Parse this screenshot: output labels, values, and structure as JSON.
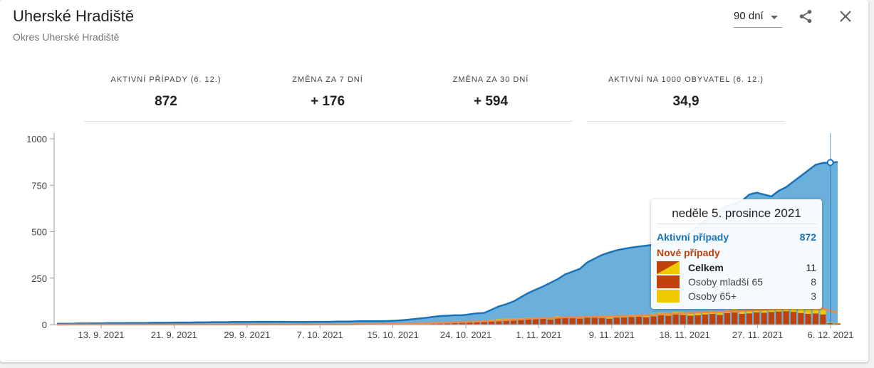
{
  "header": {
    "title": "Uherské Hradiště",
    "subtitle": "Okres Uherské Hradiště",
    "period_value": "90 dní",
    "icons": {
      "share": "share-icon",
      "close": "close-icon",
      "dropdown": "chevron-down-icon"
    }
  },
  "stats": [
    {
      "label": "AKTIVNÍ PŘÍPADY (6. 12.)",
      "value": "872"
    },
    {
      "label": "ZMĚNA ZA 7 DNÍ",
      "value": "+ 176"
    },
    {
      "label": "ZMĚNA ZA 30 DNÍ",
      "value": "+ 594"
    },
    {
      "label": "AKTIVNÍ NA 1000 OBYVATEL (6. 12.)",
      "value": "34,9"
    }
  ],
  "tooltip": {
    "date": "neděle 5. prosince 2021",
    "active_label": "Aktivní případy",
    "active_value": "872",
    "new_label": "Nové případy",
    "rows": [
      {
        "label": "Celkem",
        "value": "11"
      },
      {
        "label": "Osoby mladší 65",
        "value": "8"
      },
      {
        "label": "Osoby 65+",
        "value": "3"
      }
    ]
  },
  "colors": {
    "active_line": "#1a73b8",
    "active_fill": "#6ab0da",
    "new_under65": "#c0410a",
    "new_65plus": "#f0c800",
    "trend": "#f08a4b",
    "active_text": "#1a73b8",
    "new_text": "#c0410a"
  },
  "chart_data": {
    "type": "area",
    "x_tick_labels": [
      "13. 9. 2021",
      "21. 9. 2021",
      "29. 9. 2021",
      "7. 10. 2021",
      "15. 10. 2021",
      "24. 10. 2021",
      "1. 11. 2021",
      "9. 11. 2021",
      "18. 11. 2021",
      "27. 11. 2021",
      "6. 12. 2021"
    ],
    "y_ticks": [
      0,
      250,
      500,
      750,
      1000
    ],
    "ylim": [
      0,
      1000
    ],
    "series": [
      {
        "name": "Aktivní případy",
        "type": "area",
        "values": [
          5,
          5,
          5,
          6,
          6,
          7,
          7,
          8,
          8,
          8,
          9,
          9,
          9,
          10,
          10,
          10,
          11,
          11,
          11,
          12,
          12,
          13,
          13,
          13,
          14,
          14,
          14,
          15,
          15,
          15,
          15,
          15,
          14,
          14,
          14,
          15,
          15,
          15,
          16,
          16,
          17,
          18,
          18,
          18,
          18,
          19,
          21,
          24,
          28,
          32,
          36,
          41,
          46,
          48,
          50,
          50,
          55,
          60,
          63,
          80,
          98,
          110,
          125,
          148,
          170,
          188,
          205,
          225,
          245,
          270,
          285,
          300,
          335,
          355,
          375,
          388,
          400,
          408,
          415,
          420,
          425,
          430,
          440,
          460,
          470,
          485,
          500,
          530,
          560,
          590,
          620,
          640,
          650,
          665,
          700,
          710,
          700,
          690,
          720,
          740,
          770,
          800,
          830,
          860,
          870,
          872,
          875
        ]
      },
      {
        "name": "Osoby mladší 65",
        "type": "bar",
        "values": [
          0,
          0,
          1,
          0,
          1,
          0,
          0,
          1,
          0,
          1,
          0,
          1,
          0,
          0,
          1,
          0,
          1,
          0,
          1,
          1,
          0,
          1,
          0,
          1,
          1,
          0,
          1,
          1,
          0,
          1,
          1,
          0,
          1,
          1,
          0,
          1,
          2,
          1,
          1,
          2,
          2,
          3,
          2,
          3,
          3,
          4,
          5,
          6,
          6,
          7,
          8,
          10,
          12,
          12,
          14,
          13,
          17,
          17,
          18,
          22,
          25,
          28,
          27,
          30,
          31,
          32,
          33,
          28,
          38,
          35,
          34,
          33,
          38,
          37,
          36,
          32,
          38,
          39,
          41,
          42,
          40,
          45,
          50,
          48,
          55,
          52,
          48,
          50,
          55,
          58,
          52,
          62,
          65,
          58,
          60,
          66,
          64,
          68,
          70,
          72,
          68,
          62,
          58,
          60,
          55,
          8,
          6
        ]
      },
      {
        "name": "Osoby 65+",
        "type": "bar",
        "values": [
          0,
          0,
          0,
          0,
          0,
          0,
          0,
          0,
          0,
          0,
          0,
          0,
          0,
          0,
          0,
          0,
          0,
          0,
          0,
          0,
          0,
          0,
          0,
          0,
          0,
          0,
          0,
          0,
          0,
          0,
          0,
          0,
          0,
          0,
          0,
          0,
          0,
          0,
          0,
          0,
          0,
          1,
          1,
          1,
          1,
          1,
          1,
          1,
          2,
          2,
          2,
          2,
          2,
          3,
          3,
          3,
          3,
          3,
          4,
          4,
          5,
          4,
          5,
          5,
          6,
          6,
          6,
          6,
          7,
          7,
          7,
          8,
          8,
          9,
          10,
          10,
          11,
          12,
          12,
          12,
          13,
          13,
          13,
          14,
          14,
          15,
          15,
          16,
          16,
          16,
          17,
          18,
          18,
          19,
          20,
          20,
          21,
          21,
          22,
          22,
          22,
          23,
          23,
          24,
          24,
          3,
          3
        ]
      }
    ]
  }
}
